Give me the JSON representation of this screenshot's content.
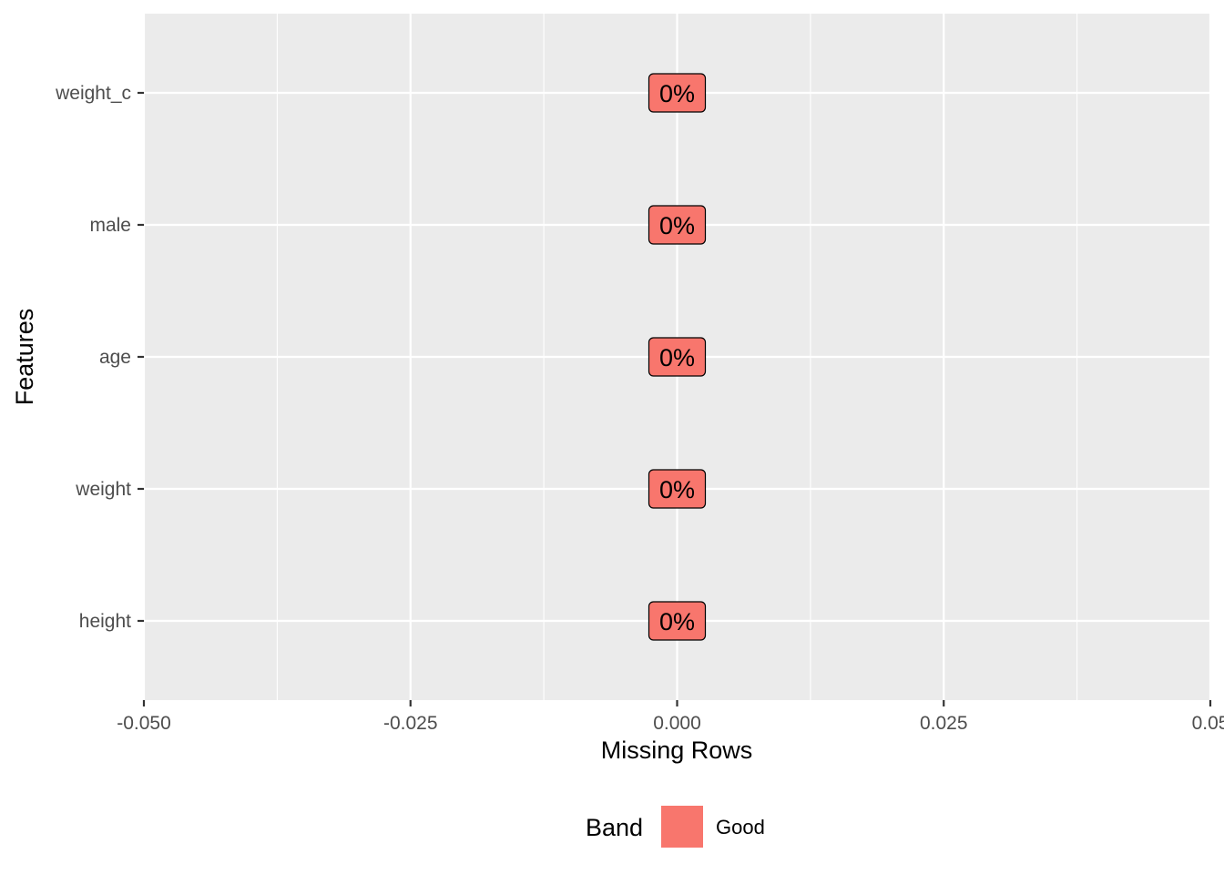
{
  "chart_data": {
    "type": "bar",
    "orientation": "horizontal",
    "categories": [
      "weight_c",
      "male",
      "age",
      "weight",
      "height"
    ],
    "values": [
      0,
      0,
      0,
      0,
      0
    ],
    "data_labels": [
      "0%",
      "0%",
      "0%",
      "0%",
      "0%"
    ],
    "band": [
      "Good",
      "Good",
      "Good",
      "Good",
      "Good"
    ],
    "xlabel": "Missing Rows",
    "ylabel": "Features",
    "xlim": [
      -0.05,
      0.05
    ],
    "xticks": [
      -0.05,
      -0.025,
      0,
      0.025,
      0.05
    ],
    "xtick_labels": [
      "-0.050",
      "-0.025",
      "0.000",
      "0.025",
      "0.05"
    ],
    "grid": true,
    "legend": {
      "title": "Band",
      "position": "bottom",
      "entries": [
        {
          "label": "Good",
          "color": "#F8766D"
        }
      ]
    },
    "colors": {
      "panel_background": "#EBEBEB",
      "gridline": "#FFFFFF",
      "fill": "#F8766D"
    }
  }
}
